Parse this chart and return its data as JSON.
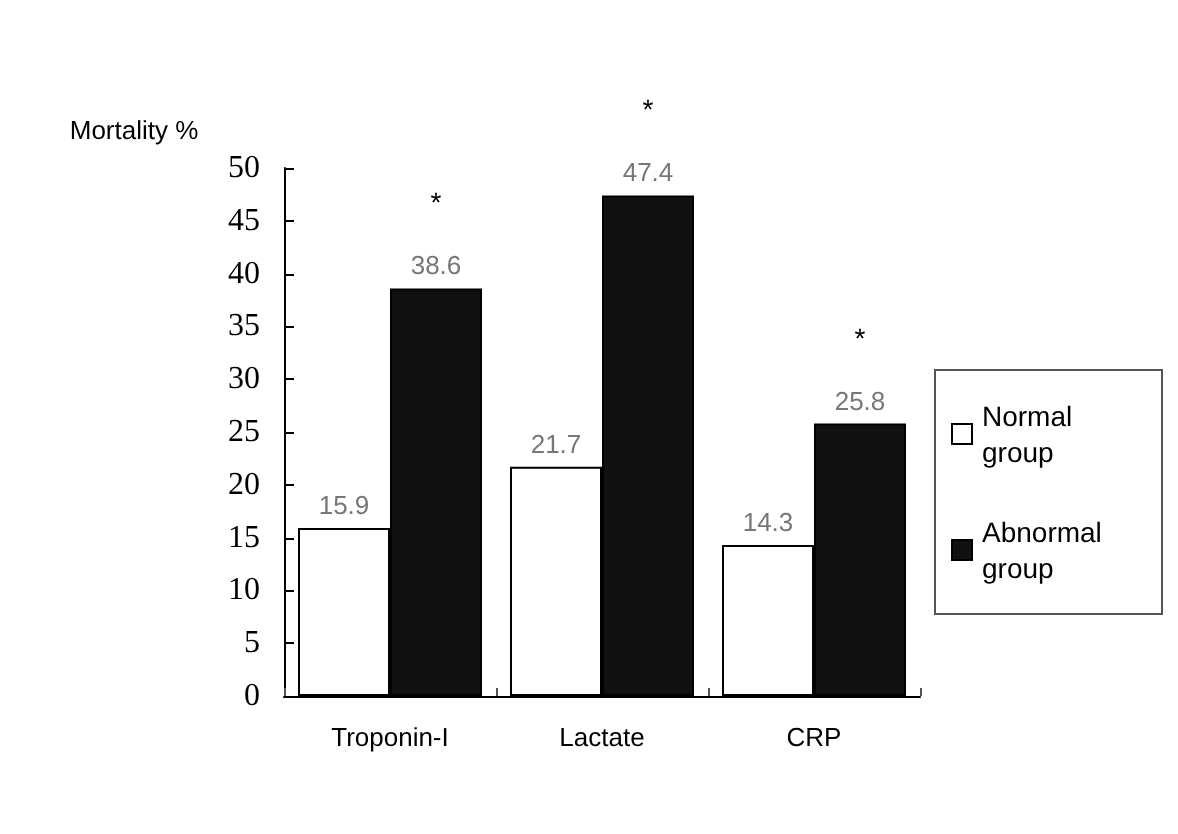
{
  "chart_data": {
    "type": "bar",
    "ylabel": "Mortality %",
    "categories": [
      "Troponin-I",
      "Lactate",
      "CRP"
    ],
    "series": [
      {
        "name": "Normal group",
        "color": "#ffffff",
        "values": [
          15.9,
          21.7,
          14.3
        ]
      },
      {
        "name": "Abnormal group",
        "color": "#111111",
        "values": [
          38.6,
          47.4,
          25.8
        ]
      }
    ],
    "ylim": [
      0,
      50
    ],
    "yticks": [
      0,
      5,
      10,
      15,
      20,
      25,
      30,
      35,
      40,
      45,
      50
    ],
    "grid": false,
    "legend": "right",
    "data_labels": true,
    "annotations": [
      {
        "text": "*",
        "x": "Troponin-I",
        "y": 38.6
      },
      {
        "text": "*",
        "x": "Lactate",
        "y": 47.4
      },
      {
        "text": "*",
        "x": "CRP",
        "y": 25.8
      }
    ]
  }
}
